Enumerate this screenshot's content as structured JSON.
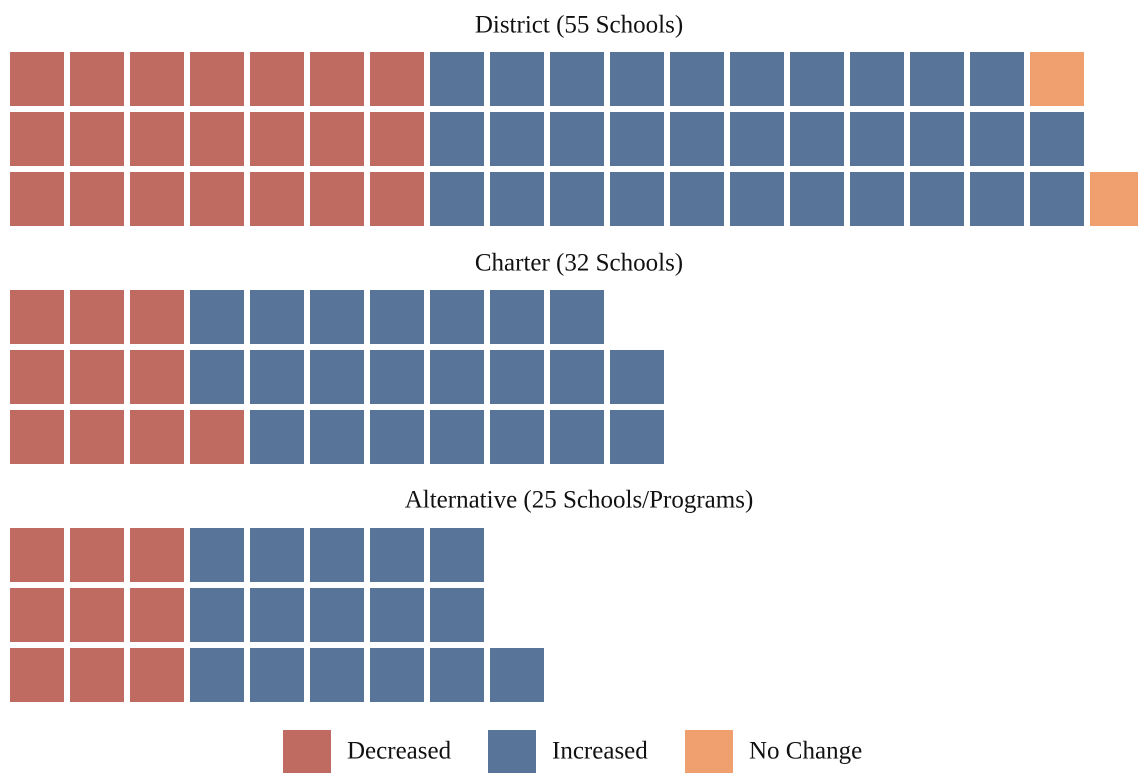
{
  "chart_data": {
    "type": "waffle",
    "series": [
      {
        "name": "Decreased",
        "color": "#c06b62"
      },
      {
        "name": "Increased",
        "color": "#587498"
      },
      {
        "name": "No Change",
        "color": "#f0a06e"
      }
    ],
    "panels": [
      {
        "title": "District (55 Schools)",
        "rows": [
          [
            7,
            10,
            1
          ],
          [
            7,
            11,
            0
          ],
          [
            7,
            11,
            1
          ]
        ]
      },
      {
        "title": "Charter (32 Schools)",
        "rows": [
          [
            3,
            7,
            0
          ],
          [
            3,
            8,
            0
          ],
          [
            4,
            7,
            0
          ]
        ]
      },
      {
        "title": "Alternative (25 Schools/Programs)",
        "rows": [
          [
            3,
            5,
            0
          ],
          [
            3,
            5,
            0
          ],
          [
            3,
            6,
            0
          ]
        ]
      }
    ]
  }
}
